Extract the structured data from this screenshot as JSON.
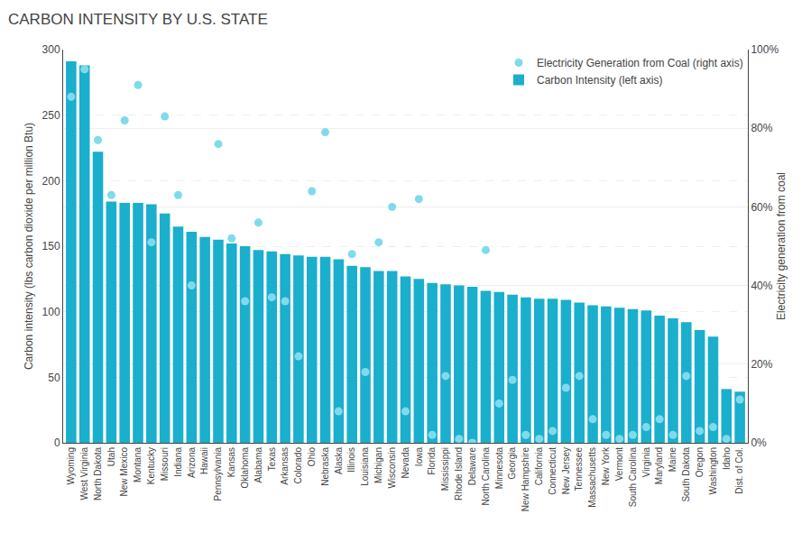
{
  "chart_data": {
    "type": "bar",
    "title": "CARBON INTENSITY BY U.S. STATE",
    "ylabel": "Carbon intensity (lbs carbon dioxide per million Btu)",
    "y2label": "Electricity generation from coal",
    "categories": [
      "Wyoming",
      "West Virginia",
      "North Dakota",
      "Utah",
      "New Mexico",
      "Montana",
      "Kentucky",
      "Missouri",
      "Indiana",
      "Arizona",
      "Hawaii",
      "Pennsylvania",
      "Kansas",
      "Oklahoma",
      "Alabama",
      "Texas",
      "Arkansas",
      "Colorado",
      "Ohio",
      "Nebraska",
      "Alaska",
      "Illinois",
      "Louisiana",
      "Michigan",
      "Wisconsin",
      "Nevada",
      "Iowa",
      "Florida",
      "Mississippi",
      "Rhode Island",
      "Delaware",
      "North Carolina",
      "Minnesota",
      "Georgia",
      "New Hampshire",
      "California",
      "Connecticut",
      "New Jersey",
      "Tennessee",
      "Massachusetts",
      "New York",
      "Vermont",
      "South Carolina",
      "Virginia",
      "Maryland",
      "Maine",
      "South Dakota",
      "Oregon",
      "Washington",
      "Idaho",
      "Dist. of Col."
    ],
    "series": [
      {
        "name": "Electricity Generation from Coal (right axis)",
        "type": "scatter",
        "marker": "circle",
        "color": "#7FDBEC",
        "axis": "y2",
        "values": [
          88,
          95,
          77,
          63,
          82,
          91,
          51,
          83,
          63,
          40,
          null,
          76,
          52,
          36,
          56,
          37,
          36,
          22,
          64,
          79,
          8,
          48,
          18,
          51,
          60,
          8,
          62,
          2,
          17,
          1,
          0,
          49,
          10,
          16,
          2,
          1,
          3,
          14,
          17,
          6,
          2,
          1,
          2,
          4,
          6,
          2,
          17,
          3,
          4,
          1,
          11
        ]
      },
      {
        "name": "Carbon Intensity (left axis)",
        "type": "bar",
        "color": "#1AAFCC",
        "values": [
          291,
          288,
          222,
          184,
          183,
          183,
          182,
          175,
          165,
          161,
          157,
          155,
          152,
          150,
          147,
          146,
          144,
          143,
          142,
          142,
          140,
          135,
          134,
          131,
          131,
          127,
          125,
          122,
          121,
          120,
          119,
          116,
          115,
          113,
          111,
          110,
          110,
          109,
          107,
          105,
          104,
          103,
          102,
          101,
          97,
          95,
          92,
          86,
          81,
          41,
          39
        ]
      }
    ],
    "ylim": [
      0,
      300
    ],
    "yticks": [
      0,
      50,
      100,
      150,
      200,
      250,
      300
    ],
    "y2lim": [
      0,
      100
    ],
    "y2ticks": [
      {
        "value": 0,
        "label": "0%"
      },
      {
        "value": 20,
        "label": "20%"
      },
      {
        "value": 40,
        "label": "40%"
      },
      {
        "value": 60,
        "label": "60%"
      },
      {
        "value": 80,
        "label": "80%"
      },
      {
        "value": 100,
        "label": "100%"
      }
    ],
    "grid": true,
    "legend": "upper right"
  }
}
